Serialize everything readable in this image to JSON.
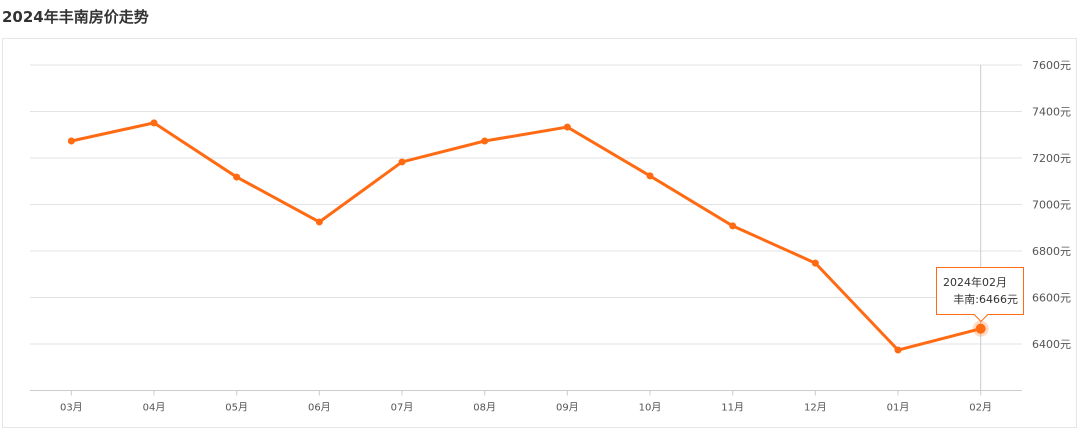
{
  "title": "2024年丰南房价走势",
  "chart_data": {
    "type": "line",
    "categories": [
      "03月",
      "04月",
      "05月",
      "06月",
      "07月",
      "08月",
      "09月",
      "10月",
      "11月",
      "12月",
      "01月",
      "02月"
    ],
    "series": [
      {
        "name": "丰南",
        "values": [
          7273,
          7351,
          7118,
          6925,
          7183,
          7273,
          7333,
          7123,
          6908,
          6748,
          6374,
          6466
        ],
        "color": "#ff6a13"
      }
    ],
    "yticks": [
      6400,
      6600,
      6800,
      7000,
      7200,
      7400,
      7600
    ],
    "yunit": "元",
    "ylim": [
      6200,
      7600
    ],
    "grid": true,
    "tooltip": {
      "title": "2024年02月",
      "label": "丰南:6466元"
    }
  }
}
